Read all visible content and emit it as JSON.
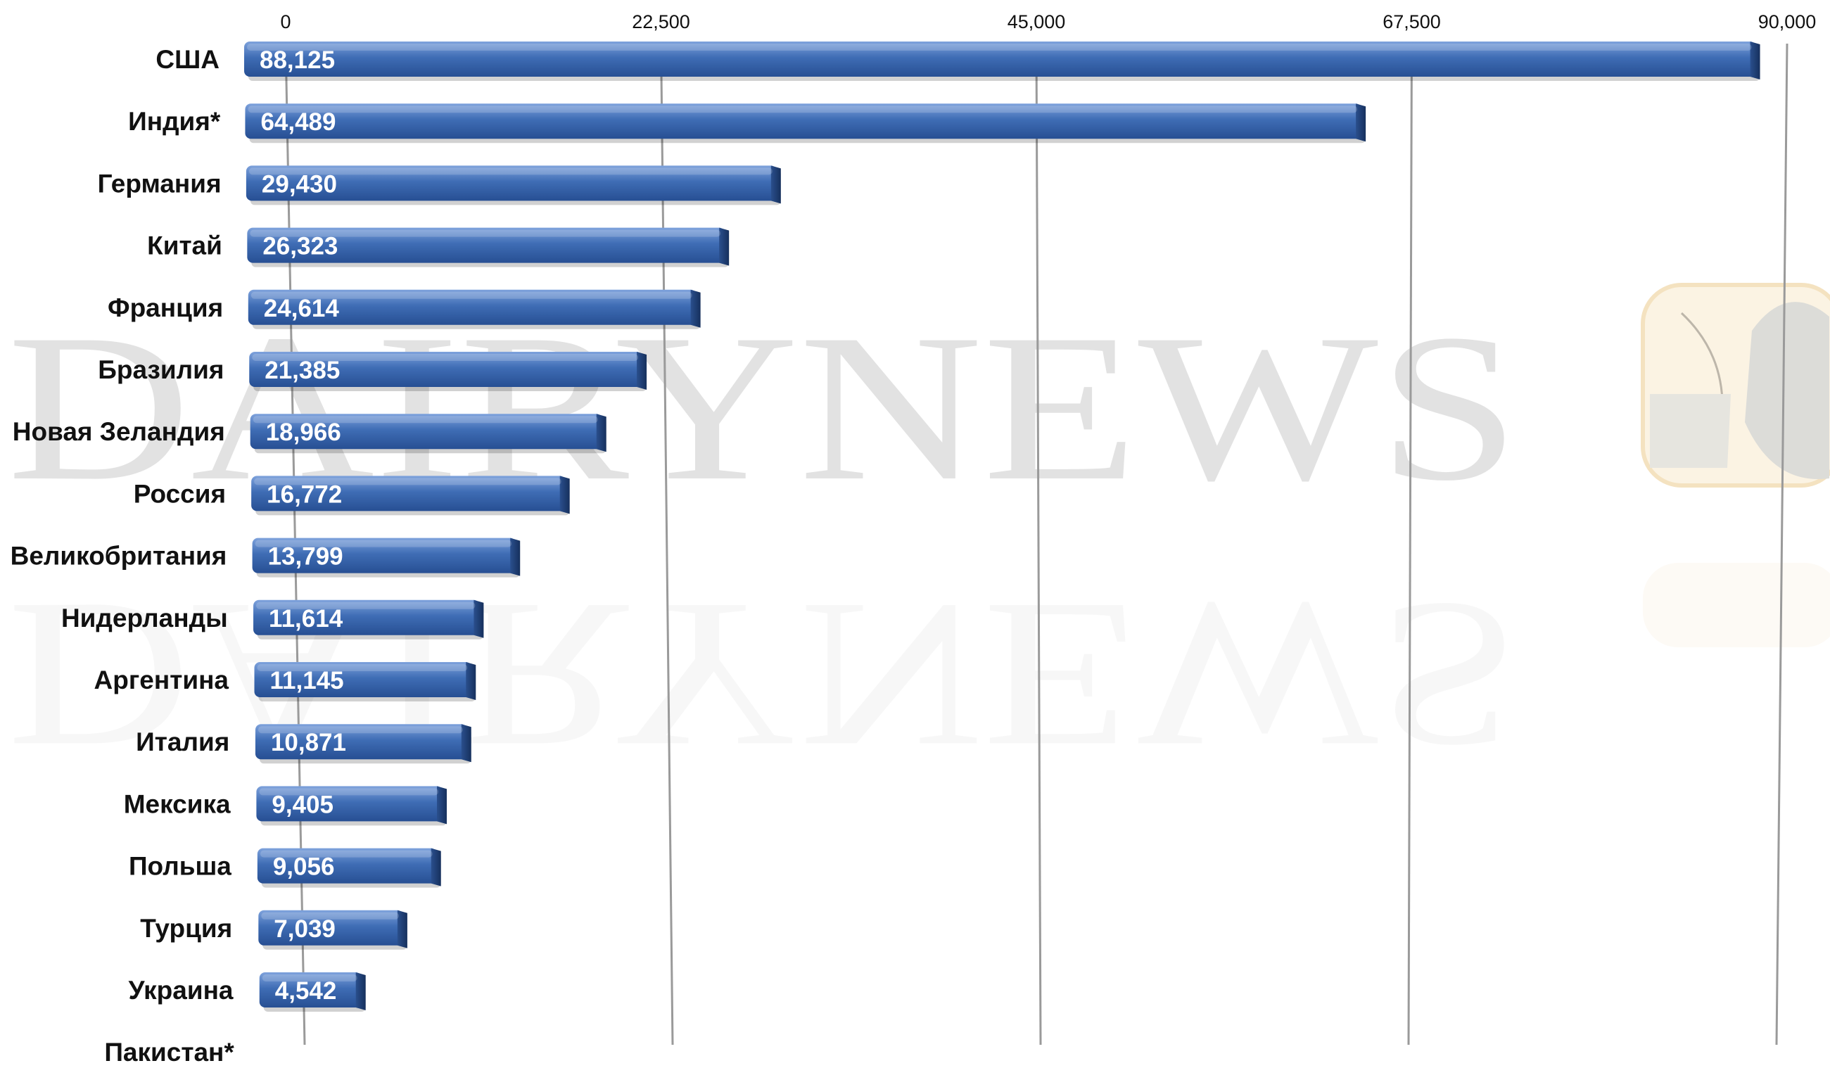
{
  "watermark": {
    "text": "DAIRYNEWS",
    "color": "#d9d9d9"
  },
  "colors": {
    "bar": "#3f6db5",
    "bar_dark": "#1c3f7c",
    "bar_light": "#7ea2dc",
    "gridline": "#9a9a9a"
  },
  "chart_data": {
    "type": "bar",
    "orientation": "horizontal",
    "title": "",
    "xlabel": "",
    "ylabel": "",
    "xlim": [
      0,
      90000
    ],
    "ticks": [
      "0",
      "22,500",
      "45,000",
      "67,500",
      "90,000"
    ],
    "tick_values": [
      0,
      22500,
      45000,
      67500,
      90000
    ],
    "tick_position": "top",
    "grid": true,
    "legend": "none",
    "categories": [
      "США",
      "Индия*",
      "Германия",
      "Китай",
      "Франция",
      "Бразилия",
      "Новая Зеландия",
      "Россия",
      "Великобритания",
      "Нидерланды",
      "Аргентина",
      "Италия",
      "Мексика",
      "Польша",
      "Турция",
      "Украина",
      "Пакистан*"
    ],
    "values": [
      88125,
      64489,
      29430,
      26323,
      24614,
      21385,
      18966,
      16772,
      13799,
      11614,
      11145,
      10871,
      9405,
      9056,
      7039,
      4542,
      null
    ],
    "value_labels": [
      "88,125",
      "64,489",
      "29,430",
      "26,323",
      "24,614",
      "21,385",
      "18,966",
      "16,772",
      "13,799",
      "11,614",
      "11,145",
      "10,871",
      "9,405",
      "9,056",
      "7,039",
      "4,542",
      ""
    ]
  }
}
